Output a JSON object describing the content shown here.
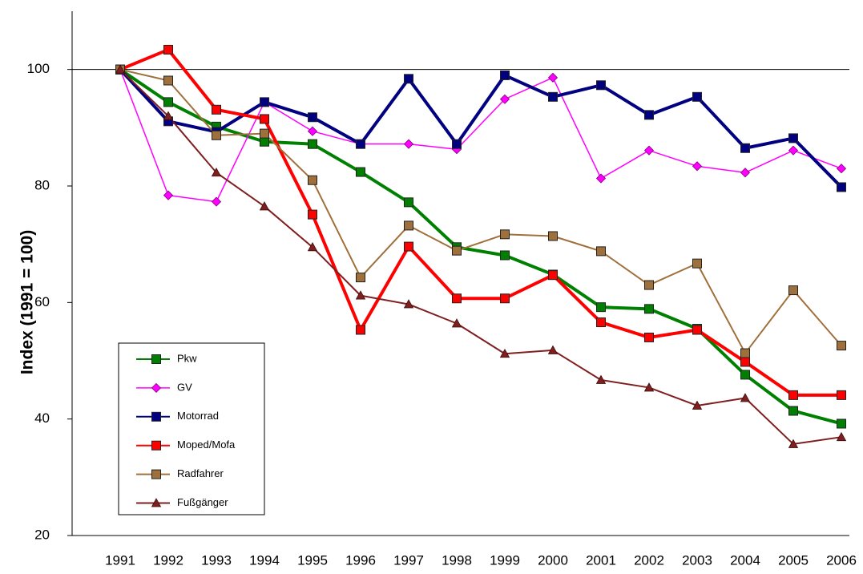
{
  "chart_data": {
    "type": "line",
    "y_label": "Index (1991 = 100)",
    "categories": [
      "1991",
      "1992",
      "1993",
      "1994",
      "1995",
      "1996",
      "1997",
      "1998",
      "1999",
      "2000",
      "2001",
      "2002",
      "2003",
      "2004",
      "2005",
      "2006"
    ],
    "ylim": [
      20,
      110
    ],
    "yticks": [
      20,
      40,
      60,
      80,
      100
    ],
    "reference_line": 100,
    "legend": "lower left",
    "series": [
      {
        "name": "Pkw",
        "color": "#008000",
        "marker": "square",
        "values": [
          100,
          94.4,
          90.2,
          87.6,
          87.2,
          82.4,
          77.2,
          69.5,
          68.1,
          64.8,
          59.2,
          58.9,
          55.5,
          47.6,
          41.4,
          39.2
        ]
      },
      {
        "name": "GV",
        "color": "#ff00ff",
        "marker": "diamond",
        "values": [
          100,
          78.4,
          77.3,
          94.4,
          89.4,
          87.2,
          87.2,
          86.3,
          94.9,
          98.6,
          81.3,
          86.1,
          83.4,
          82.3,
          86.1,
          83.0
        ]
      },
      {
        "name": "Motorrad",
        "color": "#000080",
        "marker": "square",
        "values": [
          100,
          91.1,
          89.3,
          94.4,
          91.8,
          87.2,
          98.4,
          87.2,
          99.0,
          95.3,
          97.3,
          92.2,
          95.3,
          86.5,
          88.2,
          79.8
        ]
      },
      {
        "name": "Moped/Mofa",
        "color": "#ff0000",
        "marker": "square",
        "values": [
          100,
          103.4,
          93.1,
          91.5,
          75.1,
          55.3,
          69.6,
          60.7,
          60.7,
          64.7,
          56.6,
          54.0,
          55.3,
          49.8,
          44.1,
          44.1
        ]
      },
      {
        "name": "Radfahrer",
        "color": "#a0703c",
        "marker": "square",
        "values": [
          100,
          98.1,
          88.7,
          89.0,
          81.0,
          64.3,
          73.2,
          68.9,
          71.7,
          71.4,
          68.8,
          63.0,
          66.7,
          51.3,
          62.1,
          52.6
        ]
      },
      {
        "name": "Fußgänger",
        "color": "#7f1f1f",
        "marker": "triangle",
        "values": [
          100,
          92.0,
          82.3,
          76.5,
          69.5,
          61.2,
          59.7,
          56.4,
          51.2,
          51.8,
          46.7,
          45.4,
          42.3,
          43.6,
          35.7,
          36.9
        ]
      }
    ]
  }
}
